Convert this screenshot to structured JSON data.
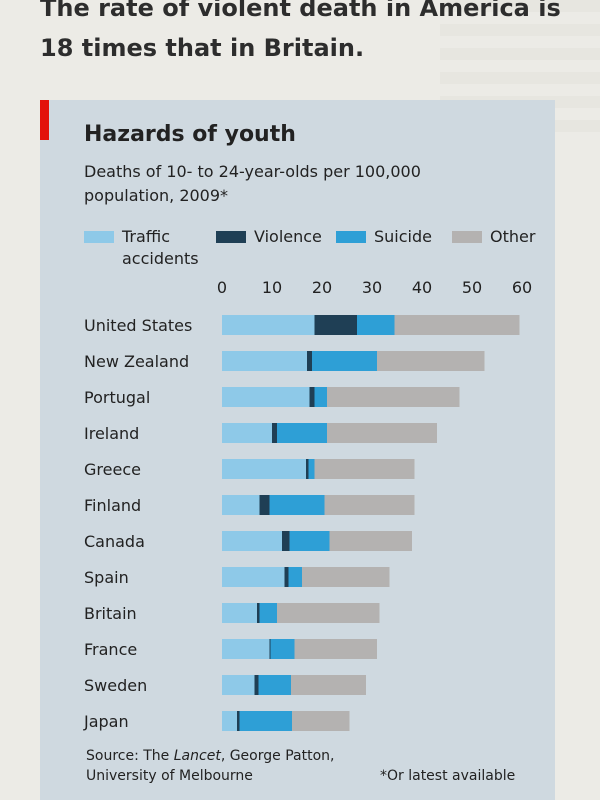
{
  "headline": "The rate of violent death in America is 18 times that in Britain.",
  "source_prefix": "Source: The ",
  "source_italic": "Lancet",
  "source_suffix": ", George Patton, University of Melbourne",
  "footnote": "*Or latest available",
  "colors": {
    "traffic": "#8ec9e8",
    "violence": "#1f3f55",
    "suicide": "#2e9fd6",
    "other": "#b4b2b1",
    "accent": "#e3120b"
  },
  "chart_data": {
    "type": "bar",
    "orientation": "horizontal",
    "stacked": true,
    "title": "Hazards of youth",
    "subtitle": "Deaths of 10- to 24-year-olds per 100,000 population, 2009*",
    "xlim": [
      0,
      60
    ],
    "xticks": [
      0,
      10,
      20,
      30,
      40,
      50,
      60
    ],
    "legend_position": "top",
    "categories": [
      "United States",
      "New Zealand",
      "Portugal",
      "Ireland",
      "Greece",
      "Finland",
      "Canada",
      "Spain",
      "Britain",
      "France",
      "Sweden",
      "Japan"
    ],
    "series": [
      {
        "name": "Traffic accidents",
        "values": [
          18.5,
          17,
          17.5,
          10,
          16.8,
          7.5,
          12,
          12.5,
          7,
          9.5,
          6.5,
          3
        ]
      },
      {
        "name": "Violence",
        "values": [
          8.5,
          1,
          1,
          1,
          0.5,
          2,
          1.5,
          0.8,
          0.5,
          0.2,
          0.8,
          0.5
        ]
      },
      {
        "name": "Suicide",
        "values": [
          7.5,
          13,
          2.5,
          10,
          1.2,
          11,
          8,
          2.7,
          3.5,
          4.8,
          6.5,
          10.5
        ]
      },
      {
        "name": "Other",
        "values": [
          25,
          21.5,
          26.5,
          22,
          20,
          18,
          16.5,
          17.5,
          20.5,
          16.5,
          15,
          11.5
        ]
      }
    ]
  }
}
